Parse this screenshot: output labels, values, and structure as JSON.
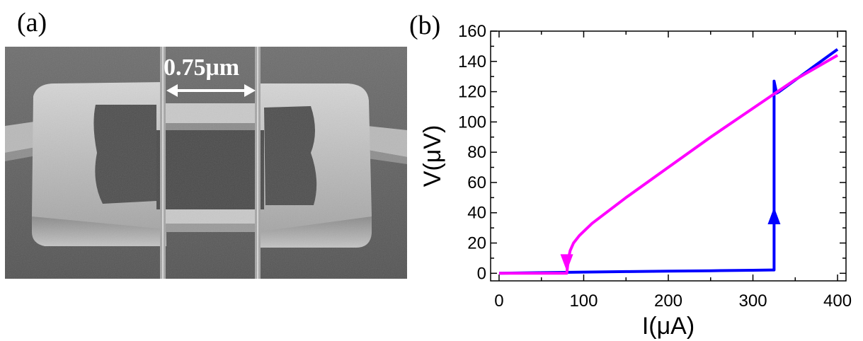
{
  "panels": {
    "a_label": "(a)",
    "b_label": "(b)"
  },
  "sem_image": {
    "scale_label": "0.75μm"
  },
  "chart_data": {
    "type": "line",
    "xlabel": "I(μA)",
    "ylabel": "V(μV)",
    "xlim": [
      -10,
      410
    ],
    "ylim": [
      -5,
      160
    ],
    "xticks": [
      0,
      100,
      200,
      300,
      400
    ],
    "yticks": [
      0,
      20,
      40,
      60,
      80,
      100,
      120,
      140,
      160
    ],
    "grid": false,
    "series": [
      {
        "color": "#0000ff",
        "direction": "increasing current",
        "x": [
          0,
          50,
          100,
          150,
          200,
          250,
          300,
          322,
          325,
          325,
          328,
          331,
          400
        ],
        "y": [
          0,
          0.4,
          0.8,
          1.1,
          1.4,
          1.7,
          2.0,
          2.2,
          2.2,
          127,
          119,
          120,
          148
        ]
      },
      {
        "color": "#ff00ff",
        "direction": "decreasing current",
        "x": [
          400,
          350,
          300,
          250,
          200,
          150,
          110,
          95,
          88,
          84,
          82,
          80,
          50,
          0
        ],
        "y": [
          144,
          128,
          109,
          90,
          70,
          50,
          33,
          25,
          20,
          15,
          10,
          0,
          0,
          0
        ]
      }
    ],
    "arrows": [
      {
        "series": 0,
        "x": 325,
        "y": 38,
        "direction": "up",
        "color": "#0000ff"
      },
      {
        "series": 1,
        "x": 80,
        "y": 7,
        "direction": "down",
        "color": "#ff00ff"
      }
    ]
  }
}
